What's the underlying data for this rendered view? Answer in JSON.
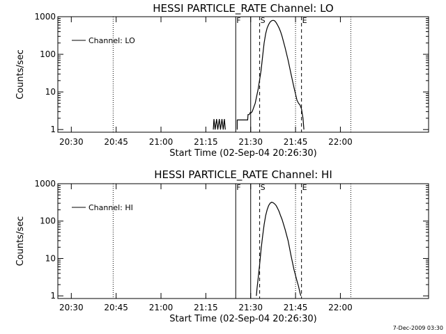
{
  "chart_data": [
    {
      "type": "line",
      "title": "HESSI PARTICLE_RATE Channel: LO",
      "xlabel": "Start Time (02-Sep-04 20:26:30)",
      "ylabel": "Counts/sec",
      "yscale": "log",
      "ylim": [
        0.85,
        1000
      ],
      "xlim": [
        -1,
        123
      ],
      "x_units": "minutes after 20:26:30",
      "xticks": [
        {
          "x": 3.5,
          "label": "20:30"
        },
        {
          "x": 18.5,
          "label": "20:45"
        },
        {
          "x": 33.5,
          "label": "21:00"
        },
        {
          "x": 48.5,
          "label": "21:15"
        },
        {
          "x": 63.5,
          "label": "21:30"
        },
        {
          "x": 78.5,
          "label": "21:45"
        },
        {
          "x": 93.5,
          "label": "22:00"
        }
      ],
      "yticks": [
        {
          "y": 1,
          "label": "1"
        },
        {
          "y": 10,
          "label": "10"
        },
        {
          "y": 100,
          "label": "100"
        },
        {
          "y": 1000,
          "label": "1000"
        }
      ],
      "legend": {
        "label": "Channel: LO",
        "position": "top-left"
      },
      "markers": [
        {
          "label": "F",
          "x": 58.5,
          "style": "solid"
        },
        {
          "label": "",
          "x": 63.5,
          "style": "solid"
        },
        {
          "label": "S",
          "x": 66.5,
          "style": "dashed"
        },
        {
          "label": "E",
          "x": 80.5,
          "style": "dashed"
        },
        {
          "label": "",
          "x": 78.5,
          "style": "dotted"
        },
        {
          "label": "",
          "x": 17.5,
          "style": "dotted"
        },
        {
          "label": "",
          "x": 97.0,
          "style": "dotted"
        }
      ],
      "series": [
        {
          "name": "Channel: LO",
          "segments": [
            {
              "x": [
                51.0,
                51.2,
                51.6,
                52.1,
                52.5,
                53.0,
                53.4,
                53.9,
                54.3,
                54.7,
                55.0
              ],
              "y": [
                1,
                1.9,
                1,
                1.9,
                1,
                1.9,
                1,
                1.9,
                1,
                1.9,
                1
              ]
            },
            {
              "x": [
                59.0,
                59.0,
                62.5,
                62.6,
                63.0,
                63.3,
                63.7,
                64.0
              ],
              "y": [
                1,
                1.8,
                1.8,
                2.5,
                2.5,
                2.8,
                2.8,
                3.0
              ]
            },
            {
              "x": [
                64.0,
                65.0,
                66.0,
                67.0,
                67.5,
                68.0,
                68.5,
                69.0,
                69.5,
                70.0,
                70.5,
                71.0,
                71.5,
                72.0,
                72.5,
                73.0,
                73.5,
                74.0,
                75.0,
                76.0,
                77.0,
                78.0,
                79.0,
                79.5,
                80.0,
                80.5,
                81.0,
                81.3
              ],
              "y": [
                3.0,
                5.0,
                12.0,
                38.0,
                90.0,
                200.0,
                350.0,
                500.0,
                620.0,
                720.0,
                780.0,
                800.0,
                780.0,
                700.0,
                600.0,
                500.0,
                400.0,
                300.0,
                150.0,
                70.0,
                30.0,
                13.0,
                6.0,
                5.0,
                4.5,
                3.5,
                2.0,
                1.0
              ]
            }
          ]
        }
      ]
    },
    {
      "type": "line",
      "title": "HESSI PARTICLE_RATE Channel: HI",
      "xlabel": "Start Time (02-Sep-04 20:26:30)",
      "ylabel": "Counts/sec",
      "yscale": "log",
      "ylim": [
        0.85,
        1000
      ],
      "xlim": [
        -1,
        123
      ],
      "x_units": "minutes after 20:26:30",
      "xticks": [
        {
          "x": 3.5,
          "label": "20:30"
        },
        {
          "x": 18.5,
          "label": "20:45"
        },
        {
          "x": 33.5,
          "label": "21:00"
        },
        {
          "x": 48.5,
          "label": "21:15"
        },
        {
          "x": 63.5,
          "label": "21:30"
        },
        {
          "x": 78.5,
          "label": "21:45"
        },
        {
          "x": 93.5,
          "label": "22:00"
        }
      ],
      "yticks": [
        {
          "y": 1,
          "label": "1"
        },
        {
          "y": 10,
          "label": "10"
        },
        {
          "y": 100,
          "label": "100"
        },
        {
          "y": 1000,
          "label": "1000"
        }
      ],
      "legend": {
        "label": "Channel: HI",
        "position": "top-left"
      },
      "markers": [
        {
          "label": "F",
          "x": 58.5,
          "style": "solid"
        },
        {
          "label": "",
          "x": 63.5,
          "style": "solid"
        },
        {
          "label": "S",
          "x": 66.5,
          "style": "dashed"
        },
        {
          "label": "E",
          "x": 80.5,
          "style": "dashed"
        },
        {
          "label": "",
          "x": 78.5,
          "style": "dotted"
        },
        {
          "label": "",
          "x": 17.5,
          "style": "dotted"
        },
        {
          "label": "",
          "x": 97.0,
          "style": "dotted"
        }
      ],
      "series": [
        {
          "name": "Channel: HI",
          "segments": [
            {
              "x": [
                65.4,
                65.6,
                66.0,
                66.5,
                67.0,
                67.5,
                68.0,
                68.5,
                69.0,
                69.5,
                70.0,
                70.5,
                71.0,
                71.5,
                72.0,
                72.5,
                73.0,
                73.5,
                74.0,
                75.0,
                76.0,
                77.0,
                78.0,
                79.0,
                79.5,
                80.0,
                80.3
              ],
              "y": [
                1.0,
                1.5,
                3.0,
                7.0,
                18.0,
                40.0,
                80.0,
                140.0,
                200.0,
                260.0,
                300.0,
                320.0,
                310.0,
                290.0,
                260.0,
                220.0,
                180.0,
                140.0,
                110.0,
                60.0,
                30.0,
                12.0,
                5.0,
                2.5,
                1.8,
                1.2,
                1.0
              ]
            }
          ]
        }
      ]
    }
  ],
  "footer": {
    "timestamp": "7-Dec-2009 03:30"
  }
}
